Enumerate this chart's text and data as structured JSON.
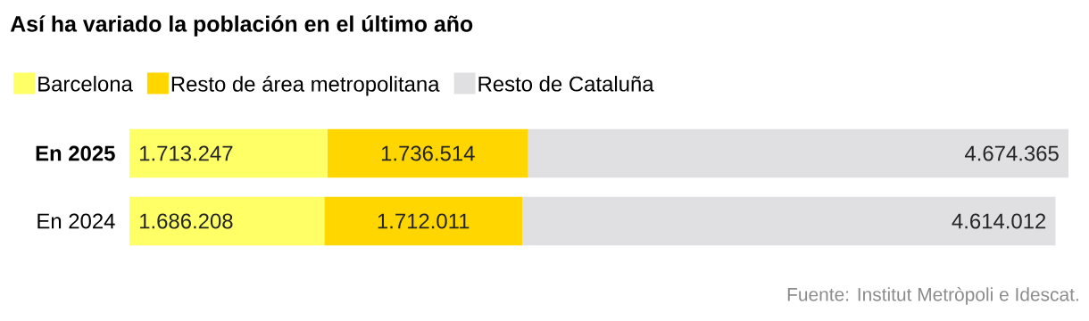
{
  "chart_data": {
    "type": "bar",
    "orientation": "horizontal",
    "stacked": true,
    "title": "Así ha variado la población en el último año",
    "categories": [
      "En 2025",
      "En 2024"
    ],
    "series": [
      {
        "name": "Barcelona",
        "color": "#ffff66",
        "values": [
          1713247,
          1686208
        ],
        "value_labels": [
          "1.713.247",
          "1.686.208"
        ]
      },
      {
        "name": "Resto de área metropolitana",
        "color": "#ffd600",
        "values": [
          1736514,
          1712011
        ],
        "value_labels": [
          "1.736.514",
          "1.712.011"
        ]
      },
      {
        "name": "Resto de Cataluña",
        "color": "#e0e0e2",
        "values": [
          4674365,
          4614012
        ],
        "value_labels": [
          "4.674.365",
          "4.614.012"
        ]
      }
    ],
    "legend": "top left",
    "annotations": [
      "Fuente: Institut Metròpoli e Idescat."
    ]
  }
}
